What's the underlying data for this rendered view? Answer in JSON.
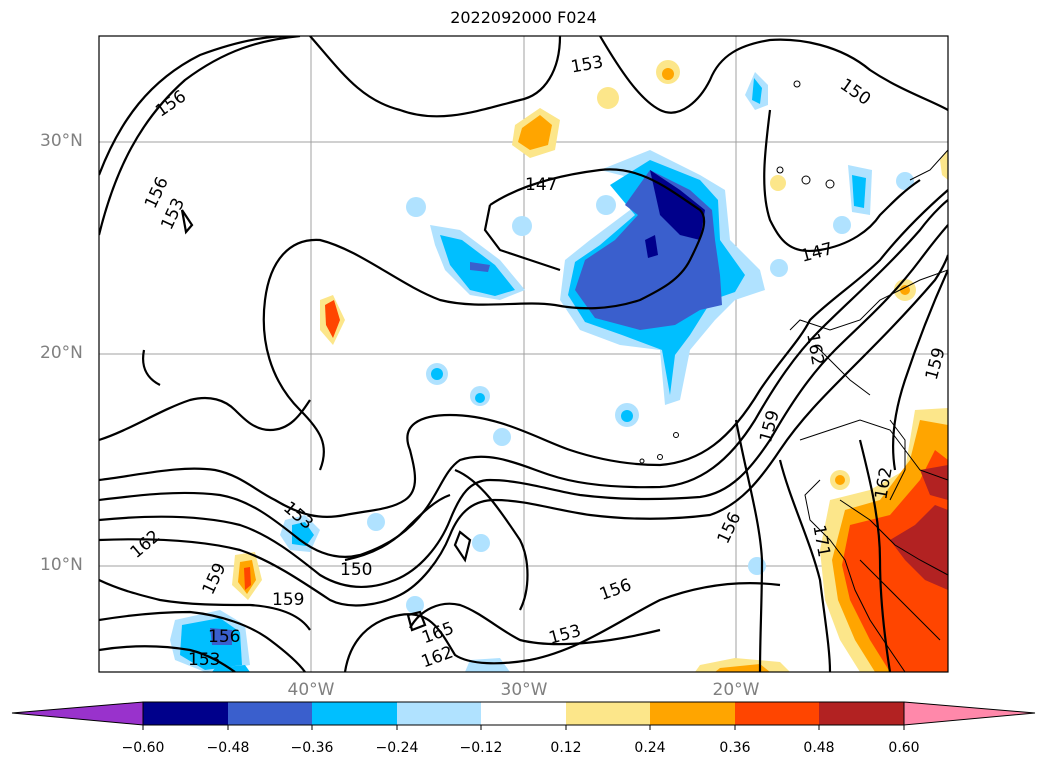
{
  "title": "2022092000 F024",
  "lat_labels": [
    "30°N",
    "20°N",
    "10°N"
  ],
  "lon_labels": [
    "40°W",
    "30°W",
    "20°W"
  ],
  "colorbar": {
    "ticks": [
      "−0.60",
      "−0.48",
      "−0.36",
      "−0.24",
      "−0.12",
      "0.12",
      "0.24",
      "0.36",
      "0.48",
      "0.60"
    ],
    "colors": [
      "#9932cc",
      "#00008b",
      "#3a5fcd",
      "#00bfff",
      "#b0e2ff",
      "#ffffff",
      "#fce68a",
      "#ffa500",
      "#ff4500",
      "#b22222",
      "#ff88aa"
    ]
  },
  "contour_labels": [
    "156",
    "153",
    "150",
    "147",
    "159",
    "162",
    "165"
  ],
  "map": {
    "lat_range": [
      5,
      35
    ],
    "lon_range": [
      -50,
      -10
    ],
    "gridlines": true,
    "field": "contour lines with shaded anomaly"
  }
}
